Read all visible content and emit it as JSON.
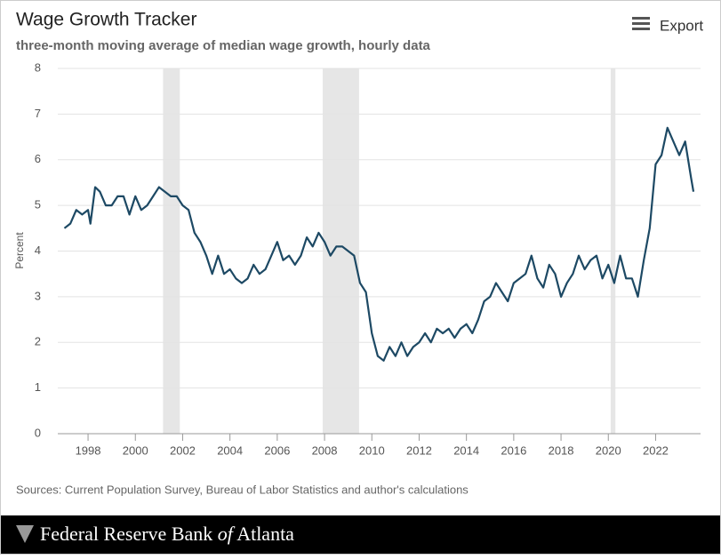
{
  "chart_data": {
    "type": "line",
    "title": "Wage Growth Tracker",
    "subtitle": "three-month moving average of median wage growth, hourly data",
    "y_label": "Percent",
    "source": "Sources: Current Population Survey, Bureau of Labor Statistics and author's calculations",
    "x": [
      1997.0,
      1997.25,
      1997.5,
      1997.75,
      1998.0,
      1998.1,
      1998.3,
      1998.5,
      1998.75,
      1999.0,
      1999.25,
      1999.5,
      1999.75,
      2000.0,
      2000.25,
      2000.5,
      2000.75,
      2001.0,
      2001.25,
      2001.5,
      2001.75,
      2002.0,
      2002.25,
      2002.5,
      2002.75,
      2003.0,
      2003.25,
      2003.5,
      2003.75,
      2004.0,
      2004.25,
      2004.5,
      2004.75,
      2005.0,
      2005.25,
      2005.5,
      2005.75,
      2006.0,
      2006.25,
      2006.5,
      2006.75,
      2007.0,
      2007.25,
      2007.5,
      2007.75,
      2008.0,
      2008.25,
      2008.5,
      2008.75,
      2009.0,
      2009.25,
      2009.5,
      2009.75,
      2010.0,
      2010.25,
      2010.5,
      2010.75,
      2011.0,
      2011.25,
      2011.5,
      2011.75,
      2012.0,
      2012.25,
      2012.5,
      2012.75,
      2013.0,
      2013.25,
      2013.5,
      2013.75,
      2014.0,
      2014.25,
      2014.5,
      2014.75,
      2015.0,
      2015.25,
      2015.5,
      2015.75,
      2016.0,
      2016.25,
      2016.5,
      2016.75,
      2017.0,
      2017.25,
      2017.5,
      2017.75,
      2018.0,
      2018.25,
      2018.5,
      2018.75,
      2019.0,
      2019.25,
      2019.5,
      2019.75,
      2020.0,
      2020.25,
      2020.5,
      2020.75,
      2021.0,
      2021.25,
      2021.5,
      2021.75,
      2022.0,
      2022.25,
      2022.5,
      2022.75,
      2023.0,
      2023.25,
      2023.5,
      2023.6
    ],
    "values": [
      4.5,
      4.6,
      4.9,
      4.8,
      4.9,
      4.6,
      5.4,
      5.3,
      5.0,
      5.0,
      5.2,
      5.2,
      4.8,
      5.2,
      4.9,
      5.0,
      5.2,
      5.4,
      5.3,
      5.2,
      5.2,
      5.0,
      4.9,
      4.4,
      4.2,
      3.9,
      3.5,
      3.9,
      3.5,
      3.6,
      3.4,
      3.3,
      3.4,
      3.7,
      3.5,
      3.6,
      3.9,
      4.2,
      3.8,
      3.9,
      3.7,
      3.9,
      4.3,
      4.1,
      4.4,
      4.2,
      3.9,
      4.1,
      4.1,
      4.0,
      3.9,
      3.3,
      3.1,
      2.2,
      1.7,
      1.6,
      1.9,
      1.7,
      2.0,
      1.7,
      1.9,
      2.0,
      2.2,
      2.0,
      2.3,
      2.2,
      2.3,
      2.1,
      2.3,
      2.4,
      2.2,
      2.5,
      2.9,
      3.0,
      3.3,
      3.1,
      2.9,
      3.3,
      3.4,
      3.5,
      3.9,
      3.4,
      3.2,
      3.7,
      3.5,
      3.0,
      3.3,
      3.5,
      3.9,
      3.6,
      3.8,
      3.9,
      3.4,
      3.7,
      3.3,
      3.9,
      3.4,
      3.4,
      3.0,
      3.8,
      4.5,
      5.9,
      6.1,
      6.7,
      6.4,
      6.1,
      6.4,
      5.6,
      5.3
    ],
    "color": "#1d4964",
    "recessions": [
      [
        2001.17,
        2001.88
      ],
      [
        2007.92,
        2009.46
      ],
      [
        2020.1,
        2020.3
      ]
    ],
    "recession_color": "#e6e6e6",
    "xlim": [
      1996.72,
      2023.9
    ],
    "xticks": [
      1998,
      2000,
      2002,
      2004,
      2006,
      2008,
      2010,
      2012,
      2014,
      2016,
      2018,
      2020,
      2022
    ],
    "ylim": [
      0,
      8
    ],
    "yticks": [
      0,
      1,
      2,
      3,
      4,
      5,
      6,
      7,
      8
    ],
    "grid": true
  },
  "export_label": "Export",
  "footer": {
    "name_start": "Federal Reserve Bank",
    "name_of": "of",
    "name_end": "Atlanta"
  }
}
